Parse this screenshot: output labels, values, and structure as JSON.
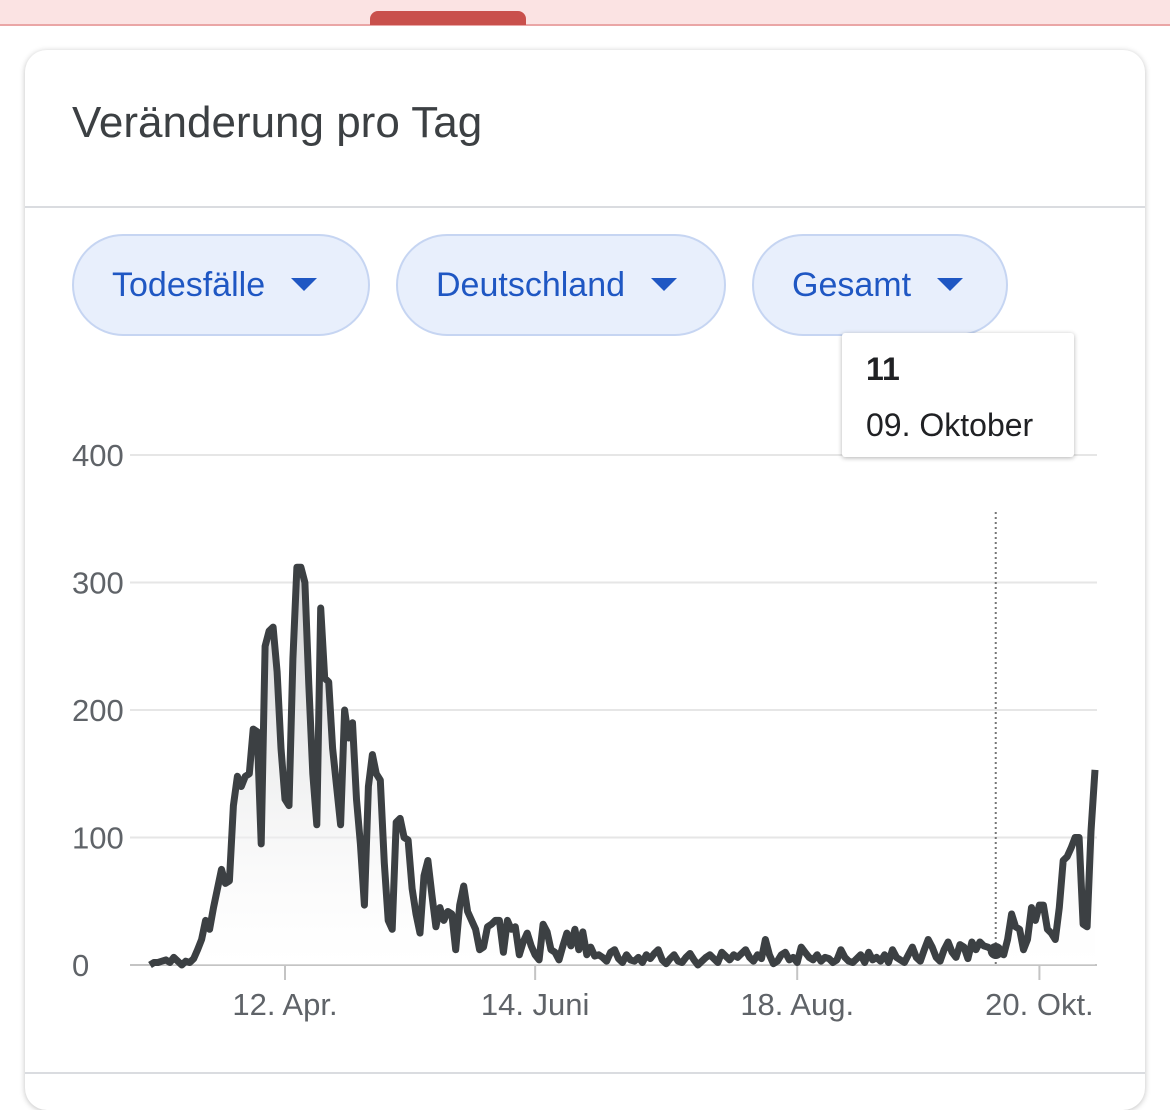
{
  "title": "Veränderung pro Tag",
  "chips": [
    "Todesfälle",
    "Deutschland",
    "Gesamt"
  ],
  "tooltip": {
    "value": 11,
    "date": "09. Oktober"
  },
  "chart_data": {
    "type": "line",
    "color": "#3c4043",
    "categories": [
      null,
      null,
      null,
      null,
      null,
      null,
      null,
      null,
      null,
      null,
      null,
      null,
      null,
      null,
      null,
      null,
      null,
      null,
      null,
      null,
      null,
      null,
      null,
      null,
      null,
      null,
      null,
      null,
      null,
      null,
      null,
      null,
      null,
      null,
      "12. Apr.",
      null,
      null,
      null,
      null,
      null,
      null,
      null,
      null,
      null,
      null,
      null,
      null,
      null,
      null,
      null,
      null,
      null,
      null,
      null,
      null,
      null,
      null,
      null,
      null,
      null,
      null,
      null,
      null,
      null,
      null,
      null,
      null,
      null,
      null,
      null,
      null,
      null,
      null,
      null,
      null,
      null,
      null,
      null,
      null,
      null,
      null,
      null,
      null,
      null,
      null,
      null,
      null,
      null,
      null,
      null,
      null,
      null,
      null,
      null,
      null,
      null,
      null,
      "14. Juni",
      null,
      null,
      null,
      null,
      null,
      null,
      null,
      null,
      null,
      null,
      null,
      null,
      null,
      null,
      null,
      null,
      null,
      null,
      null,
      null,
      null,
      null,
      null,
      null,
      null,
      null,
      null,
      null,
      null,
      null,
      null,
      null,
      null,
      null,
      null,
      null,
      null,
      null,
      null,
      null,
      null,
      null,
      null,
      null,
      null,
      null,
      null,
      null,
      null,
      null,
      null,
      null,
      null,
      null,
      null,
      null,
      null,
      null,
      null,
      null,
      null,
      null,
      null,
      null,
      null,
      "18. Aug.",
      null,
      null,
      null,
      null,
      null,
      null,
      null,
      null,
      null,
      null,
      null,
      null,
      null,
      null,
      null,
      null,
      null,
      null,
      null,
      null,
      null,
      null,
      null,
      null,
      null,
      null,
      null,
      null,
      null,
      null,
      null,
      null,
      null,
      null,
      null,
      null,
      null,
      null,
      null,
      null,
      null,
      null,
      null,
      null,
      null,
      null,
      null,
      null,
      null,
      null,
      null,
      null,
      null,
      null,
      null,
      null,
      null,
      null,
      null,
      null,
      "20. Okt.",
      null,
      null,
      null,
      null,
      null,
      null,
      null,
      null,
      null,
      null,
      null,
      null,
      null,
      null
    ],
    "values": [
      0,
      2,
      2,
      3,
      4,
      2,
      6,
      3,
      0,
      3,
      2,
      5,
      12,
      20,
      35,
      28,
      45,
      60,
      75,
      64,
      66,
      125,
      148,
      140,
      148,
      150,
      185,
      183,
      95,
      250,
      262,
      265,
      230,
      170,
      130,
      125,
      240,
      312,
      312,
      300,
      220,
      150,
      110,
      280,
      225,
      222,
      170,
      140,
      110,
      200,
      178,
      190,
      130,
      95,
      47,
      140,
      165,
      150,
      145,
      80,
      35,
      28,
      112,
      115,
      100,
      98,
      60,
      40,
      25,
      70,
      82,
      55,
      30,
      45,
      35,
      42,
      40,
      12,
      47,
      62,
      42,
      35,
      28,
      12,
      14,
      30,
      32,
      35,
      35,
      10,
      35,
      28,
      30,
      8,
      18,
      25,
      15,
      8,
      4,
      32,
      26,
      12,
      10,
      4,
      15,
      25,
      15,
      28,
      12,
      26,
      8,
      14,
      7,
      8,
      6,
      3,
      10,
      12,
      5,
      2,
      8,
      4,
      3,
      6,
      2,
      8,
      5,
      9,
      12,
      4,
      1,
      5,
      8,
      3,
      2,
      6,
      9,
      4,
      0,
      3,
      6,
      8,
      5,
      2,
      10,
      7,
      4,
      8,
      6,
      9,
      12,
      6,
      3,
      8,
      5,
      20,
      8,
      1,
      3,
      8,
      10,
      4,
      6,
      2,
      14,
      10,
      6,
      4,
      8,
      3,
      6,
      5,
      2,
      4,
      12,
      6,
      3,
      2,
      5,
      8,
      2,
      10,
      4,
      6,
      3,
      8,
      2,
      12,
      6,
      4,
      2,
      8,
      14,
      6,
      3,
      12,
      20,
      14,
      6,
      3,
      12,
      18,
      10,
      6,
      16,
      14,
      5,
      18,
      12,
      18,
      15,
      14,
      12,
      11,
      10,
      8,
      20,
      40,
      30,
      28,
      12,
      20,
      45,
      35,
      47,
      47,
      28,
      25,
      20,
      45,
      82,
      85,
      92,
      100,
      100,
      32,
      30,
      105,
      153
    ],
    "ylim": [
      0,
      400
    ],
    "yticks": [
      0,
      100,
      200,
      300,
      400
    ],
    "grid": true
  }
}
